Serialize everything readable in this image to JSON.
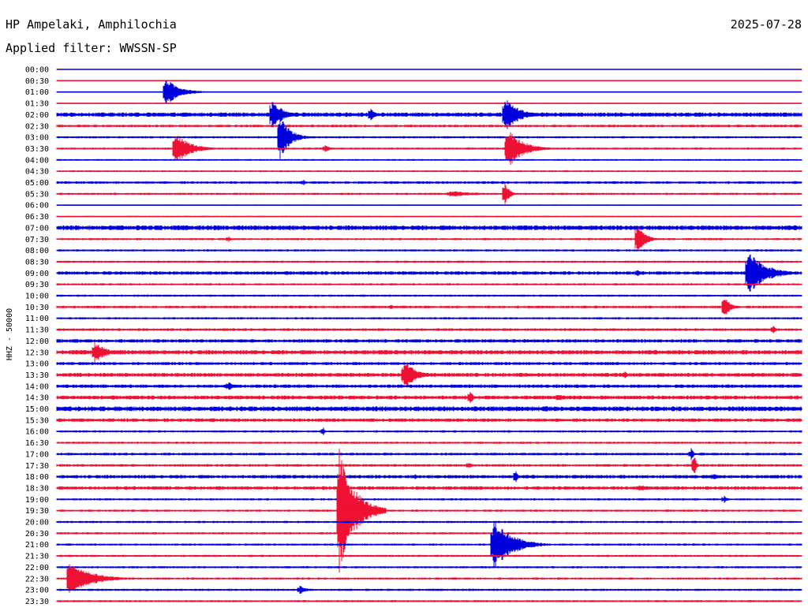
{
  "chart_data": {
    "type": "line",
    "title": "HP Ampelaki, Amphilochia",
    "date": "2025-07-28",
    "subtitle": "Applied filter: WWSSN-SP",
    "ylabel": "HHZ - 50000",
    "xlabel": "",
    "grid": false,
    "line_colors": [
      "#0000dd",
      "#ee1133"
    ],
    "rows": [
      "00:00",
      "00:30",
      "01:00",
      "01:30",
      "02:00",
      "02:30",
      "03:00",
      "03:30",
      "04:00",
      "04:30",
      "05:00",
      "05:30",
      "06:00",
      "06:30",
      "07:00",
      "07:30",
      "08:00",
      "08:30",
      "09:00",
      "09:30",
      "10:00",
      "10:30",
      "11:00",
      "11:30",
      "12:00",
      "12:30",
      "13:00",
      "13:30",
      "14:00",
      "14:30",
      "15:00",
      "15:30",
      "16:00",
      "16:30",
      "17:00",
      "17:30",
      "18:00",
      "18:30",
      "19:00",
      "19:30",
      "20:00",
      "20:30",
      "21:00",
      "21:30",
      "22:00",
      "22:30",
      "23:00",
      "23:30"
    ],
    "row_noise": [
      0.4,
      0.4,
      0.5,
      0.5,
      2.0,
      1.2,
      1.0,
      1.0,
      0.8,
      0.8,
      1.2,
      1.0,
      0.6,
      0.6,
      2.2,
      1.0,
      1.0,
      1.0,
      1.6,
      1.0,
      1.0,
      1.2,
      1.0,
      1.2,
      1.6,
      2.0,
      1.4,
      1.8,
      1.6,
      1.8,
      2.2,
      1.6,
      1.0,
      1.0,
      1.2,
      1.2,
      1.6,
      1.6,
      1.0,
      1.0,
      1.0,
      1.0,
      1.0,
      1.0,
      1.0,
      1.0,
      1.0,
      1.0
    ],
    "events": [
      {
        "row": 2,
        "x": 210,
        "amp": 18,
        "dur": 55
      },
      {
        "row": 4,
        "x": 345,
        "amp": 20,
        "dur": 40
      },
      {
        "row": 4,
        "x": 470,
        "amp": 10,
        "dur": 14
      },
      {
        "row": 4,
        "x": 640,
        "amp": 22,
        "dur": 55
      },
      {
        "row": 6,
        "x": 355,
        "amp": 28,
        "dur": 40
      },
      {
        "row": 7,
        "x": 222,
        "amp": 22,
        "dur": 55
      },
      {
        "row": 7,
        "x": 412,
        "amp": 5,
        "dur": 20
      },
      {
        "row": 7,
        "x": 643,
        "amp": 26,
        "dur": 60
      },
      {
        "row": 10,
        "x": 385,
        "amp": 4,
        "dur": 10
      },
      {
        "row": 11,
        "x": 570,
        "amp": 4,
        "dur": 120
      },
      {
        "row": 11,
        "x": 640,
        "amp": 14,
        "dur": 20
      },
      {
        "row": 14,
        "x": 180,
        "amp": 4,
        "dur": 30
      },
      {
        "row": 15,
        "x": 808,
        "amp": 20,
        "dur": 30
      },
      {
        "row": 15,
        "x": 290,
        "amp": 4,
        "dur": 10
      },
      {
        "row": 18,
        "x": 948,
        "amp": 28,
        "dur": 70
      },
      {
        "row": 18,
        "x": 808,
        "amp": 5,
        "dur": 15
      },
      {
        "row": 21,
        "x": 918,
        "amp": 14,
        "dur": 25
      },
      {
        "row": 21,
        "x": 495,
        "amp": 3,
        "dur": 20
      },
      {
        "row": 23,
        "x": 980,
        "amp": 6,
        "dur": 10
      },
      {
        "row": 25,
        "x": 120,
        "amp": 14,
        "dur": 45
      },
      {
        "row": 27,
        "x": 512,
        "amp": 20,
        "dur": 45
      },
      {
        "row": 27,
        "x": 792,
        "amp": 5,
        "dur": 10
      },
      {
        "row": 28,
        "x": 290,
        "amp": 6,
        "dur": 25
      },
      {
        "row": 29,
        "x": 596,
        "amp": 9,
        "dur": 12
      },
      {
        "row": 29,
        "x": 708,
        "amp": 5,
        "dur": 30
      },
      {
        "row": 30,
        "x": 692,
        "amp": 5,
        "dur": 10
      },
      {
        "row": 32,
        "x": 410,
        "amp": 5,
        "dur": 8
      },
      {
        "row": 34,
        "x": 876,
        "amp": 8,
        "dur": 10
      },
      {
        "row": 35,
        "x": 880,
        "amp": 14,
        "dur": 8
      },
      {
        "row": 35,
        "x": 594,
        "amp": 5,
        "dur": 12
      },
      {
        "row": 36,
        "x": 654,
        "amp": 9,
        "dur": 8
      },
      {
        "row": 36,
        "x": 526,
        "amp": 4,
        "dur": 12
      },
      {
        "row": 36,
        "x": 905,
        "amp": 5,
        "dur": 15
      },
      {
        "row": 37,
        "x": 810,
        "amp": 4,
        "dur": 80
      },
      {
        "row": 38,
        "x": 918,
        "amp": 5,
        "dur": 10
      },
      {
        "row": 39,
        "x": 430,
        "amp": 80,
        "dur": 60
      },
      {
        "row": 42,
        "x": 625,
        "amp": 36,
        "dur": 70
      },
      {
        "row": 45,
        "x": 88,
        "amp": 24,
        "dur": 80
      },
      {
        "row": 46,
        "x": 380,
        "amp": 6,
        "dur": 25
      }
    ]
  }
}
